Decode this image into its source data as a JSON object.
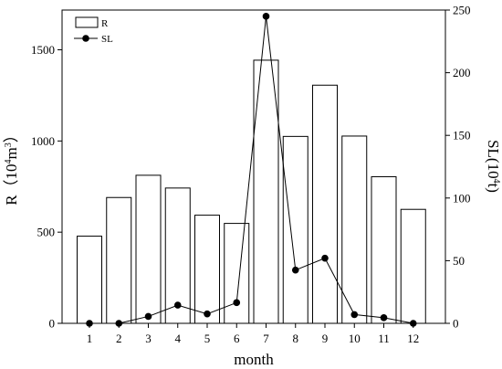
{
  "chart_data": {
    "type": "bar",
    "categories": [
      "1",
      "2",
      "3",
      "4",
      "5",
      "6",
      "7",
      "8",
      "9",
      "10",
      "11",
      "12"
    ],
    "series": [
      {
        "name": "R",
        "type": "bar",
        "axis": "left",
        "values": [
          478,
          690,
          812,
          742,
          593,
          548,
          1443,
          1025,
          1306,
          1027,
          804,
          625
        ]
      },
      {
        "name": "SL",
        "type": "line",
        "axis": "right",
        "marker": "filled-circle",
        "values": [
          0,
          0,
          5.5,
          14.5,
          7.5,
          16.5,
          245,
          42.5,
          52,
          7,
          4.5,
          0
        ]
      }
    ],
    "xlabel": "month",
    "ylabel_left": {
      "main": "R（10",
      "sup": "4",
      "unit": "m",
      "unit_sup": "3",
      "close": "）"
    },
    "ylabel_right": {
      "main": "SL(10",
      "sup": "4",
      "unit": "t)"
    },
    "ylim_left": [
      0,
      1718
    ],
    "ylim_right": [
      0,
      250
    ],
    "yticks_left": [
      "0",
      "500",
      "1000",
      "1500"
    ],
    "yticks_right": [
      "0",
      "50",
      "100",
      "150",
      "200",
      "250"
    ],
    "legend": {
      "position": "top-left",
      "items": [
        "R",
        "SL"
      ]
    },
    "grid": false,
    "colors": {
      "bar_fill": "#ffffff",
      "bar_stroke": "#000000",
      "line": "#000000"
    }
  }
}
